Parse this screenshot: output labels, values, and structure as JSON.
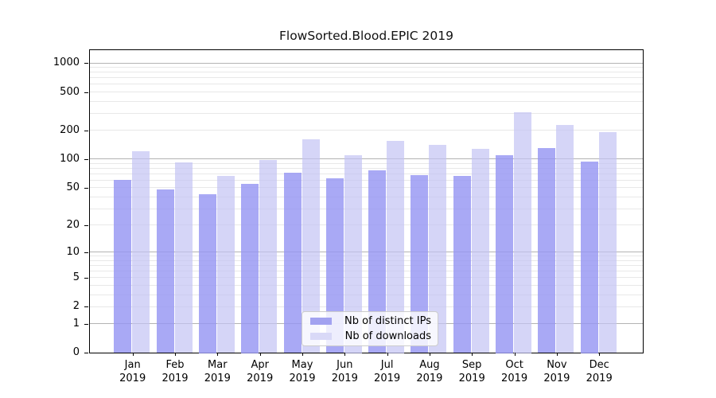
{
  "chart_data": {
    "type": "bar",
    "title": "FlowSorted.Blood.EPIC 2019",
    "months": [
      "Jan",
      "Feb",
      "Mar",
      "Apr",
      "May",
      "Jun",
      "Jul",
      "Aug",
      "Sep",
      "Oct",
      "Nov",
      "Dec"
    ],
    "year": "2019",
    "series": [
      {
        "name": "Nb of distinct IPs",
        "color": "rgba(150,150,243,0.82)",
        "legend_color": "#a2a2f0",
        "values": [
          62,
          49,
          44,
          56,
          73,
          64,
          78,
          69,
          68,
          112,
          134,
          96
        ]
      },
      {
        "name": "Nb of downloads",
        "color": "rgba(195,195,243,0.70)",
        "legend_color": "#d9d9f7",
        "values": [
          123,
          94,
          68,
          100,
          163,
          113,
          158,
          143,
          130,
          317,
          233,
          195
        ]
      }
    ],
    "yscale": "log1p",
    "ylim": [
      0,
      1000
    ],
    "yticks": [
      0,
      1,
      2,
      5,
      10,
      20,
      50,
      100,
      200,
      500,
      1000
    ],
    "ytick_labels": [
      "0",
      "1",
      "2",
      "5",
      "10",
      "20",
      "50",
      "100",
      "200",
      "500",
      "1000"
    ],
    "grid": "horizontal major+minor",
    "legend_position": "inside bottom-center",
    "colors": {
      "major_grid": "#b3b3b3",
      "minor_grid": "#e8e8e8",
      "spine": "#000000",
      "background": "#ffffff"
    }
  }
}
